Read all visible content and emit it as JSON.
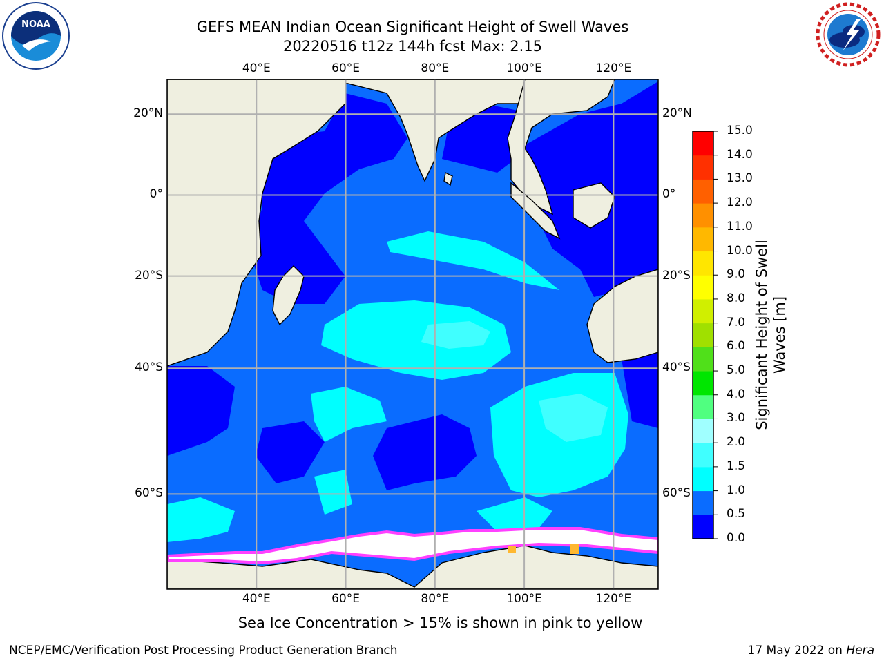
{
  "title": {
    "line1": "GEFS MEAN Indian Ocean Significant Height of Swell Waves",
    "line2": "20220516 t12z 144h fcst   Max: 2.15"
  },
  "logos": {
    "left": {
      "icon": "noaa-logo-icon",
      "text": "NOAA",
      "ring_text": "NATIONAL OCEANIC AND ATMOSPHERIC ADMINISTRATION · U.S. DEPARTMENT OF COMMERCE"
    },
    "right": {
      "icon": "nws-logo-icon",
      "ring_text": "NATIONAL WEATHER SERVICE"
    }
  },
  "map": {
    "lon_ticks": [
      "40°E",
      "60°E",
      "80°E",
      "100°E",
      "120°E"
    ],
    "lat_ticks": [
      "20°N",
      "0°",
      "20°S",
      "40°S",
      "60°S"
    ],
    "lon_values": [
      40,
      60,
      80,
      100,
      120
    ],
    "lat_values": [
      20,
      0,
      -20,
      -40,
      -60
    ],
    "extent": {
      "lon": [
        20,
        130
      ],
      "lat": [
        -70,
        28
      ]
    },
    "colors": {
      "land": "#efefe0",
      "coast": "#000000",
      "grid": "#b0b0b0",
      "ice": "#ffffff"
    }
  },
  "colorbar": {
    "label_line1": "Significant Height of Swell",
    "label_line2": "Waves [m]",
    "ticks": [
      "0.0",
      "0.5",
      "1.0",
      "1.5",
      "2.0",
      "3.0",
      "4.0",
      "5.0",
      "6.0",
      "7.0",
      "8.0",
      "9.0",
      "10.0",
      "11.0",
      "12.0",
      "13.0",
      "14.0",
      "15.0"
    ],
    "colors": [
      "#0000ff",
      "#0a6cff",
      "#00ffff",
      "#40ffff",
      "#a0ffff",
      "#50ff80",
      "#00e600",
      "#50e01a",
      "#a0e000",
      "#d0ef00",
      "#ffff00",
      "#ffe600",
      "#ffb800",
      "#ff9000",
      "#ff6000",
      "#ff3000",
      "#ff0000"
    ]
  },
  "note": "Sea Ice Concentration > 15% is shown in pink to yellow",
  "footer": {
    "left": "NCEP/EMC/Verification Post Processing Product Generation Branch",
    "date": "17 May 2022 on ",
    "host": "Hera"
  }
}
